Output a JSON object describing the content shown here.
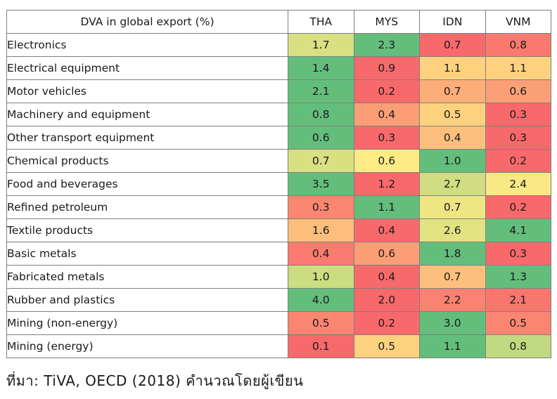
{
  "chart_data": {
    "type": "heatmap",
    "corner_label": "DVA in global export (%)",
    "columns": [
      "THA",
      "MYS",
      "IDN",
      "VNM"
    ],
    "rows": [
      {
        "label": "Electronics",
        "values": [
          "1.7",
          "2.3",
          "0.7",
          "0.8"
        ]
      },
      {
        "label": "Electrical equipment",
        "values": [
          "1.4",
          "0.9",
          "1.1",
          "1.1"
        ]
      },
      {
        "label": "Motor vehicles",
        "values": [
          "2.1",
          "0.2",
          "0.7",
          "0.6"
        ]
      },
      {
        "label": "Machinery and equipment",
        "values": [
          "0.8",
          "0.4",
          "0.5",
          "0.3"
        ]
      },
      {
        "label": "Other transport equipment",
        "values": [
          "0.6",
          "0.3",
          "0.4",
          "0.3"
        ]
      },
      {
        "label": "Chemical products",
        "values": [
          "0.7",
          "0.6",
          "1.0",
          "0.2"
        ]
      },
      {
        "label": "Food and beverages",
        "values": [
          "3.5",
          "1.2",
          "2.7",
          "2.4"
        ]
      },
      {
        "label": "Refined petroleum",
        "values": [
          "0.3",
          "1.1",
          "0.7",
          "0.2"
        ]
      },
      {
        "label": "Textile products",
        "values": [
          "1.6",
          "0.4",
          "2.6",
          "4.1"
        ]
      },
      {
        "label": "Basic metals",
        "values": [
          "0.4",
          "0.6",
          "1.8",
          "0.3"
        ]
      },
      {
        "label": "Fabricated metals",
        "values": [
          "1.0",
          "0.4",
          "0.7",
          "1.3"
        ]
      },
      {
        "label": "Rubber and plastics",
        "values": [
          "4.0",
          "2.0",
          "2.2",
          "2.1"
        ]
      },
      {
        "label": "Mining (non-energy)",
        "values": [
          "0.5",
          "0.2",
          "3.0",
          "0.5"
        ]
      },
      {
        "label": "Mining (energy)",
        "values": [
          "0.1",
          "0.5",
          "1.1",
          "0.8"
        ]
      }
    ],
    "color_scale": "per-row: red (lowest) to yellow to green (highest)",
    "colors": {
      "low": "#f8696b",
      "mid": "#ffeb84",
      "high": "#63be7b"
    }
  },
  "source_note": "ที่มา: TiVA, OECD (2018) คำนวณโดยผู้เขียน"
}
